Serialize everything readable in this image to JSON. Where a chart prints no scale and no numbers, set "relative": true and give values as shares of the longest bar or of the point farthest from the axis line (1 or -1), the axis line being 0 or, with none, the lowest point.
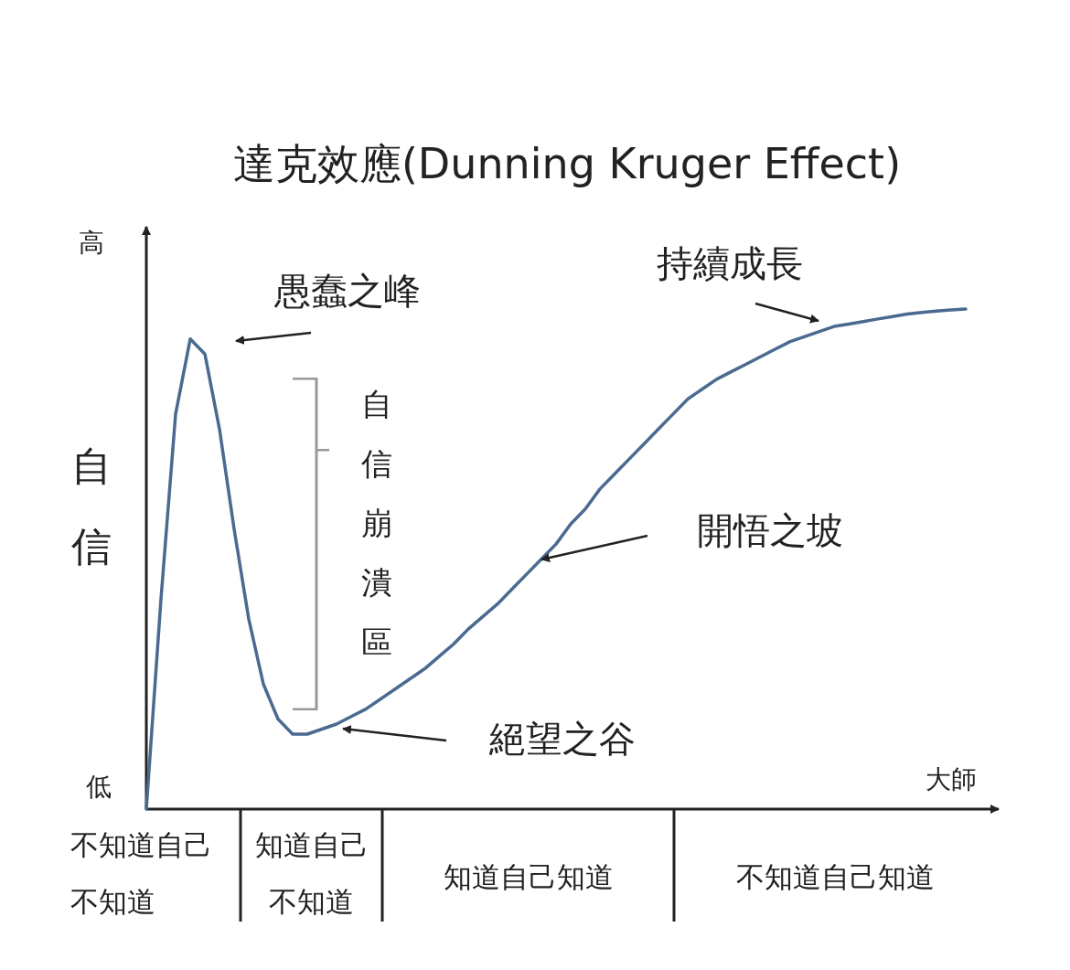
{
  "chart_data": {
    "type": "line",
    "title": "達克效應(Dunning Kruger Effect)",
    "xlabel": "大師",
    "ylabel": "自信",
    "relative": true,
    "categories": [
      null,
      null,
      null,
      null,
      null,
      null,
      null,
      null,
      null,
      null,
      null,
      null,
      null,
      null,
      null,
      null,
      null,
      null,
      null,
      null,
      null,
      null,
      null,
      null,
      null,
      null,
      null,
      null,
      null,
      null,
      null,
      null,
      null,
      null,
      null,
      null,
      null,
      null,
      null,
      null,
      null,
      null,
      null,
      null,
      null,
      null,
      null,
      null,
      null,
      null,
      null,
      null,
      null,
      null,
      null,
      null,
      null
    ],
    "series": [
      {
        "color": "#4a6a90",
        "values": [
          0,
          0.42,
          0.79,
          0.94,
          0.91,
          0.76,
          0.56,
          0.38,
          0.25,
          0.18,
          0.15,
          0.15,
          0.16,
          0.17,
          0.185,
          0.2,
          0.22,
          0.24,
          0.26,
          0.28,
          0.305,
          0.33,
          0.36,
          0.385,
          0.41,
          0.44,
          0.47,
          0.5,
          0.53,
          0.57,
          0.6,
          0.64,
          0.67,
          0.7,
          0.73,
          0.76,
          0.79,
          0.82,
          0.84,
          0.86,
          0.875,
          0.89,
          0.905,
          0.92,
          0.935,
          0.945,
          0.955,
          0.965,
          0.97,
          0.975,
          0.98,
          0.985,
          0.99,
          0.993,
          0.996,
          0.998,
          1
        ]
      }
    ],
    "annotations": [
      "愚蠢之峰",
      "自信崩潰區",
      "絕望之谷",
      "開悟之坡",
      "持續成長",
      "高",
      "低",
      "不知道自己不知道",
      "知道自己不知道",
      "知道自己知道",
      "不知道自己知道"
    ]
  }
}
